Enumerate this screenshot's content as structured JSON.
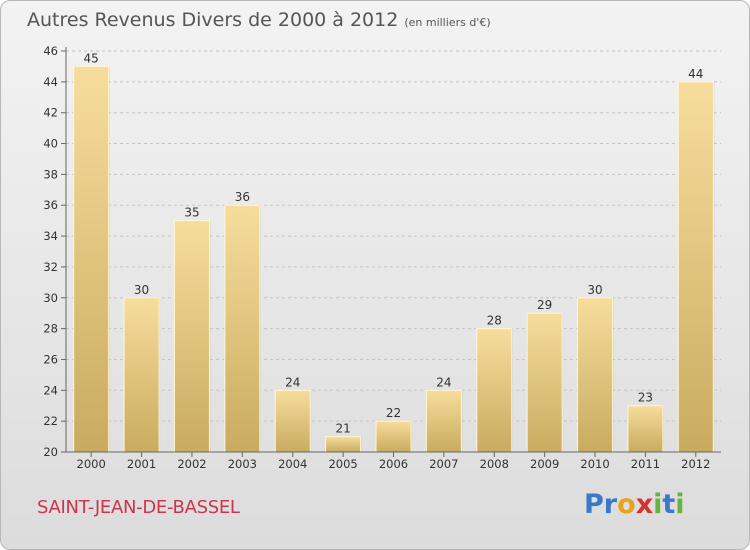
{
  "title": "Autres Revenus Divers de 2000 à 2012",
  "unit": "(en milliers d'€)",
  "commune": "SAINT-JEAN-DE-BASSEL",
  "logo": {
    "letters": [
      {
        "ch": "P",
        "color": "#3a78c9"
      },
      {
        "ch": "r",
        "color": "#3a78c9"
      },
      {
        "ch": "o",
        "color": "#e8a21c"
      },
      {
        "ch": "x",
        "color": "#d8322c"
      },
      {
        "ch": "i",
        "color": "#6ab23e"
      },
      {
        "ch": "t",
        "color": "#3a78c9"
      },
      {
        "ch": "i",
        "color": "#6ab23e"
      }
    ]
  },
  "chart_data": {
    "type": "bar",
    "title": "Autres Revenus Divers de 2000 à 2012",
    "categories": [
      "2000",
      "2001",
      "2002",
      "2003",
      "2004",
      "2005",
      "2006",
      "2007",
      "2008",
      "2009",
      "2010",
      "2011",
      "2012"
    ],
    "values": [
      45,
      30,
      35,
      36,
      24,
      21,
      22,
      24,
      28,
      29,
      30,
      23,
      44
    ],
    "ylim": [
      20,
      46
    ],
    "yticks": [
      20,
      22,
      24,
      26,
      28,
      30,
      32,
      34,
      36,
      38,
      40,
      42,
      44,
      46
    ],
    "grid": true,
    "bar_color_top": "#f7dd9c",
    "bar_color_bottom": "#c9ab60"
  }
}
